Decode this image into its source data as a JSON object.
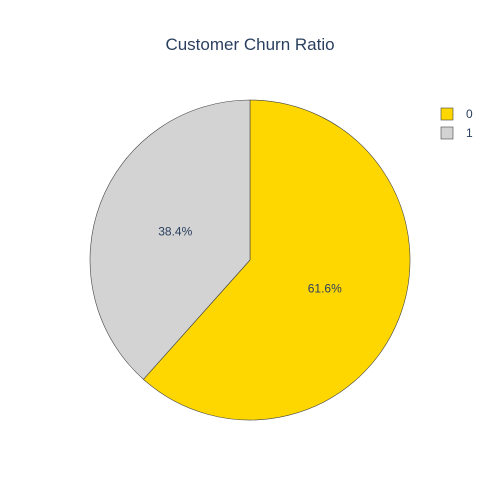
{
  "chart_data": {
    "type": "pie",
    "title": "Customer Churn Ratio",
    "slices": [
      {
        "label": "0",
        "value": 61.6,
        "color": "#ffd700"
      },
      {
        "label": "1",
        "value": 38.4,
        "color": "#d3d3d3"
      }
    ],
    "value_labels": [
      "61.6%",
      "38.4%"
    ],
    "legend_placement": "top-right",
    "slice_border_color": "#444444"
  }
}
